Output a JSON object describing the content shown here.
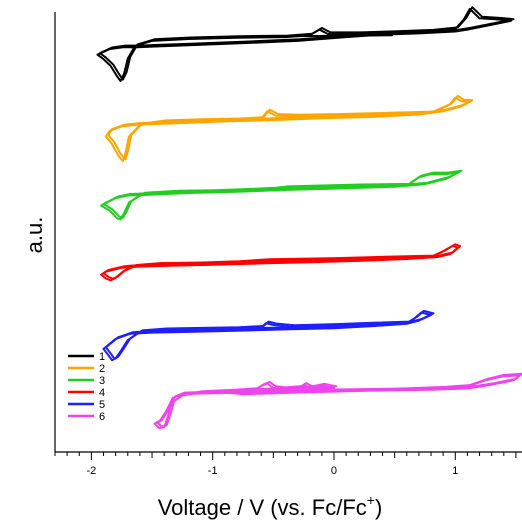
{
  "chart_data": {
    "type": "line",
    "xlabel_main": "Voltage  / V (vs. Fc/Fc",
    "xlabel_sup": "+",
    "xlabel_end": ")",
    "ylabel": "a.u.",
    "xlim": [
      -2.3,
      1.55
    ],
    "x_ticks": [
      -2,
      -1,
      0,
      1
    ],
    "x_tick_labels": [
      "-2",
      "-1",
      "0",
      "1"
    ],
    "legend_position": "bottom-left",
    "series": [
      {
        "name": "1",
        "color": "#000000",
        "offset": 6.2,
        "loop": [
          [
            -1.95,
            0.12
          ],
          [
            -1.9,
            0.05
          ],
          [
            -1.84,
            -0.06
          ],
          [
            -1.79,
            -0.22
          ],
          [
            -1.76,
            -0.3
          ],
          [
            -1.73,
            -0.18
          ],
          [
            -1.7,
            0.06
          ],
          [
            -1.64,
            0.26
          ],
          [
            -1.5,
            0.34
          ],
          [
            -1.2,
            0.37
          ],
          [
            -0.8,
            0.39
          ],
          [
            -0.4,
            0.4
          ],
          [
            -0.2,
            0.43
          ],
          [
            -0.12,
            0.52
          ],
          [
            -0.05,
            0.45
          ],
          [
            0.2,
            0.45
          ],
          [
            0.5,
            0.47
          ],
          [
            0.8,
            0.49
          ],
          [
            1.0,
            0.53
          ],
          [
            1.07,
            0.68
          ],
          [
            1.12,
            0.85
          ],
          [
            1.2,
            0.7
          ],
          [
            1.36,
            0.68
          ],
          [
            1.46,
            0.66
          ],
          [
            1.36,
            0.62
          ],
          [
            1.1,
            0.52
          ],
          [
            1.0,
            0.49
          ],
          [
            0.7,
            0.46
          ],
          [
            0.4,
            0.44
          ],
          [
            0.1,
            0.4
          ],
          [
            -0.3,
            0.34
          ],
          [
            -0.8,
            0.3
          ],
          [
            -1.2,
            0.27
          ],
          [
            -1.5,
            0.25
          ],
          [
            -1.62,
            0.24
          ],
          [
            -1.74,
            0.24
          ],
          [
            -1.85,
            0.21
          ],
          [
            -1.95,
            0.12
          ]
        ],
        "tail": [
          [
            -0.6,
            0.41
          ],
          [
            0.48,
            0.43
          ]
        ]
      },
      {
        "name": "2",
        "color": "#FFA500",
        "offset": 4.9,
        "loop": [
          [
            -1.88,
            0.12
          ],
          [
            -1.83,
            0.0
          ],
          [
            -1.78,
            -0.18
          ],
          [
            -1.74,
            -0.27
          ],
          [
            -1.72,
            -0.15
          ],
          [
            -1.69,
            0.12
          ],
          [
            -1.6,
            0.3
          ],
          [
            -1.4,
            0.35
          ],
          [
            -1.1,
            0.37
          ],
          [
            -0.8,
            0.38
          ],
          [
            -0.6,
            0.4
          ],
          [
            -0.55,
            0.52
          ],
          [
            -0.48,
            0.45
          ],
          [
            -0.3,
            0.44
          ],
          [
            0.0,
            0.45
          ],
          [
            0.4,
            0.47
          ],
          [
            0.8,
            0.49
          ],
          [
            0.95,
            0.62
          ],
          [
            1.0,
            0.74
          ],
          [
            1.05,
            0.68
          ],
          [
            1.12,
            0.67
          ],
          [
            1.05,
            0.6
          ],
          [
            0.9,
            0.52
          ],
          [
            0.7,
            0.47
          ],
          [
            0.3,
            0.43
          ],
          [
            -0.1,
            0.41
          ],
          [
            -0.5,
            0.38
          ],
          [
            -0.9,
            0.36
          ],
          [
            -1.3,
            0.33
          ],
          [
            -1.6,
            0.31
          ],
          [
            -1.75,
            0.28
          ],
          [
            -1.85,
            0.21
          ],
          [
            -1.88,
            0.12
          ]
        ],
        "tail": [
          [
            -0.95,
            0.37
          ],
          [
            -0.15,
            0.44
          ]
        ]
      },
      {
        "name": "3",
        "color": "#22CC22",
        "offset": 3.8,
        "loop": [
          [
            -1.92,
            0.12
          ],
          [
            -1.85,
            0.04
          ],
          [
            -1.79,
            -0.08
          ],
          [
            -1.76,
            -0.1
          ],
          [
            -1.73,
            0.0
          ],
          [
            -1.69,
            0.17
          ],
          [
            -1.58,
            0.3
          ],
          [
            -1.3,
            0.33
          ],
          [
            -1.0,
            0.34
          ],
          [
            -0.7,
            0.36
          ],
          [
            -0.5,
            0.38
          ],
          [
            -0.4,
            0.4
          ],
          [
            -0.2,
            0.41
          ],
          [
            0.2,
            0.43
          ],
          [
            0.6,
            0.44
          ],
          [
            0.7,
            0.57
          ],
          [
            0.8,
            0.62
          ],
          [
            0.92,
            0.62
          ],
          [
            1.03,
            0.65
          ],
          [
            0.93,
            0.55
          ],
          [
            0.75,
            0.46
          ],
          [
            0.5,
            0.42
          ],
          [
            0.0,
            0.39
          ],
          [
            -0.4,
            0.37
          ],
          [
            -0.8,
            0.34
          ],
          [
            -1.2,
            0.32
          ],
          [
            -1.55,
            0.29
          ],
          [
            -1.7,
            0.28
          ],
          [
            -1.8,
            0.24
          ],
          [
            -1.92,
            0.12
          ]
        ],
        "tail": [
          [
            -0.65,
            0.36
          ],
          [
            -0.05,
            0.39
          ]
        ]
      },
      {
        "name": "4",
        "color": "#FF0000",
        "offset": 2.7,
        "loop": [
          [
            -1.92,
            0.12
          ],
          [
            -1.88,
            0.06
          ],
          [
            -1.84,
            0.03
          ],
          [
            -1.8,
            0.07
          ],
          [
            -1.74,
            0.17
          ],
          [
            -1.65,
            0.25
          ],
          [
            -1.45,
            0.28
          ],
          [
            -1.1,
            0.29
          ],
          [
            -0.8,
            0.31
          ],
          [
            -0.55,
            0.34
          ],
          [
            -0.3,
            0.35
          ],
          [
            0.0,
            0.36
          ],
          [
            0.4,
            0.38
          ],
          [
            0.8,
            0.4
          ],
          [
            0.88,
            0.47
          ],
          [
            0.98,
            0.58
          ],
          [
            1.02,
            0.55
          ],
          [
            0.96,
            0.45
          ],
          [
            0.85,
            0.4
          ],
          [
            0.6,
            0.37
          ],
          [
            0.2,
            0.34
          ],
          [
            -0.2,
            0.32
          ],
          [
            -0.6,
            0.3
          ],
          [
            -1.0,
            0.28
          ],
          [
            -1.4,
            0.26
          ],
          [
            -1.62,
            0.25
          ],
          [
            -1.75,
            0.23
          ],
          [
            -1.88,
            0.17
          ],
          [
            -1.92,
            0.12
          ]
        ],
        "tail": [
          [
            -0.6,
            0.33
          ],
          [
            -0.1,
            0.34
          ]
        ]
      },
      {
        "name": "5",
        "color": "#1E1EFF",
        "offset": 1.6,
        "loop": [
          [
            -1.9,
            0.04
          ],
          [
            -1.86,
            -0.06
          ],
          [
            -1.83,
            -0.14
          ],
          [
            -1.8,
            -0.11
          ],
          [
            -1.76,
            0.0
          ],
          [
            -1.7,
            0.18
          ],
          [
            -1.6,
            0.31
          ],
          [
            -1.4,
            0.34
          ],
          [
            -1.1,
            0.35
          ],
          [
            -0.8,
            0.36
          ],
          [
            -0.6,
            0.38
          ],
          [
            -0.56,
            0.45
          ],
          [
            -0.5,
            0.42
          ],
          [
            -0.35,
            0.39
          ],
          [
            0.0,
            0.41
          ],
          [
            0.3,
            0.43
          ],
          [
            0.6,
            0.45
          ],
          [
            0.66,
            0.52
          ],
          [
            0.72,
            0.62
          ],
          [
            0.8,
            0.58
          ],
          [
            0.7,
            0.49
          ],
          [
            0.6,
            0.44
          ],
          [
            0.3,
            0.4
          ],
          [
            0.0,
            0.37
          ],
          [
            -0.4,
            0.35
          ],
          [
            -0.8,
            0.33
          ],
          [
            -1.2,
            0.31
          ],
          [
            -1.5,
            0.3
          ],
          [
            -1.68,
            0.28
          ],
          [
            -1.8,
            0.2
          ],
          [
            -1.9,
            0.04
          ]
        ],
        "tail": [
          [
            -0.7,
            0.37
          ],
          [
            -0.1,
            0.39
          ]
        ]
      },
      {
        "name": "6",
        "color": "#EE44EE",
        "offset": 0.5,
        "loop": [
          [
            -1.48,
            -0.05
          ],
          [
            -1.44,
            -0.12
          ],
          [
            -1.4,
            -0.1
          ],
          [
            -1.37,
            0.06
          ],
          [
            -1.34,
            0.28
          ],
          [
            -1.25,
            0.4
          ],
          [
            -1.1,
            0.44
          ],
          [
            -0.8,
            0.47
          ],
          [
            -0.65,
            0.49
          ],
          [
            -0.6,
            0.55
          ],
          [
            -0.55,
            0.59
          ],
          [
            -0.5,
            0.52
          ],
          [
            -0.4,
            0.5
          ],
          [
            -0.3,
            0.5
          ],
          [
            -0.25,
            0.57
          ],
          [
            -0.2,
            0.52
          ],
          [
            -0.1,
            0.56
          ],
          [
            0.0,
            0.52
          ],
          [
            -0.1,
            0.5
          ],
          [
            -0.3,
            0.52
          ],
          [
            -0.5,
            0.49
          ],
          [
            -0.7,
            0.47
          ],
          [
            -0.9,
            0.45
          ],
          [
            -0.75,
            0.42
          ],
          [
            -0.2,
            0.45
          ],
          [
            0.2,
            0.47
          ],
          [
            0.6,
            0.49
          ],
          [
            0.9,
            0.51
          ],
          [
            1.1,
            0.54
          ],
          [
            1.25,
            0.64
          ],
          [
            1.38,
            0.7
          ],
          [
            1.53,
            0.72
          ],
          [
            1.48,
            0.64
          ],
          [
            1.3,
            0.57
          ],
          [
            1.1,
            0.51
          ],
          [
            0.8,
            0.49
          ],
          [
            0.4,
            0.48
          ],
          [
            0.0,
            0.47
          ],
          [
            -0.4,
            0.46
          ],
          [
            -0.8,
            0.44
          ],
          [
            -1.1,
            0.43
          ],
          [
            -1.25,
            0.42
          ],
          [
            -1.33,
            0.36
          ],
          [
            -1.38,
            0.16
          ],
          [
            -1.44,
            -0.02
          ],
          [
            -1.48,
            -0.05
          ]
        ],
        "tail": []
      }
    ]
  }
}
